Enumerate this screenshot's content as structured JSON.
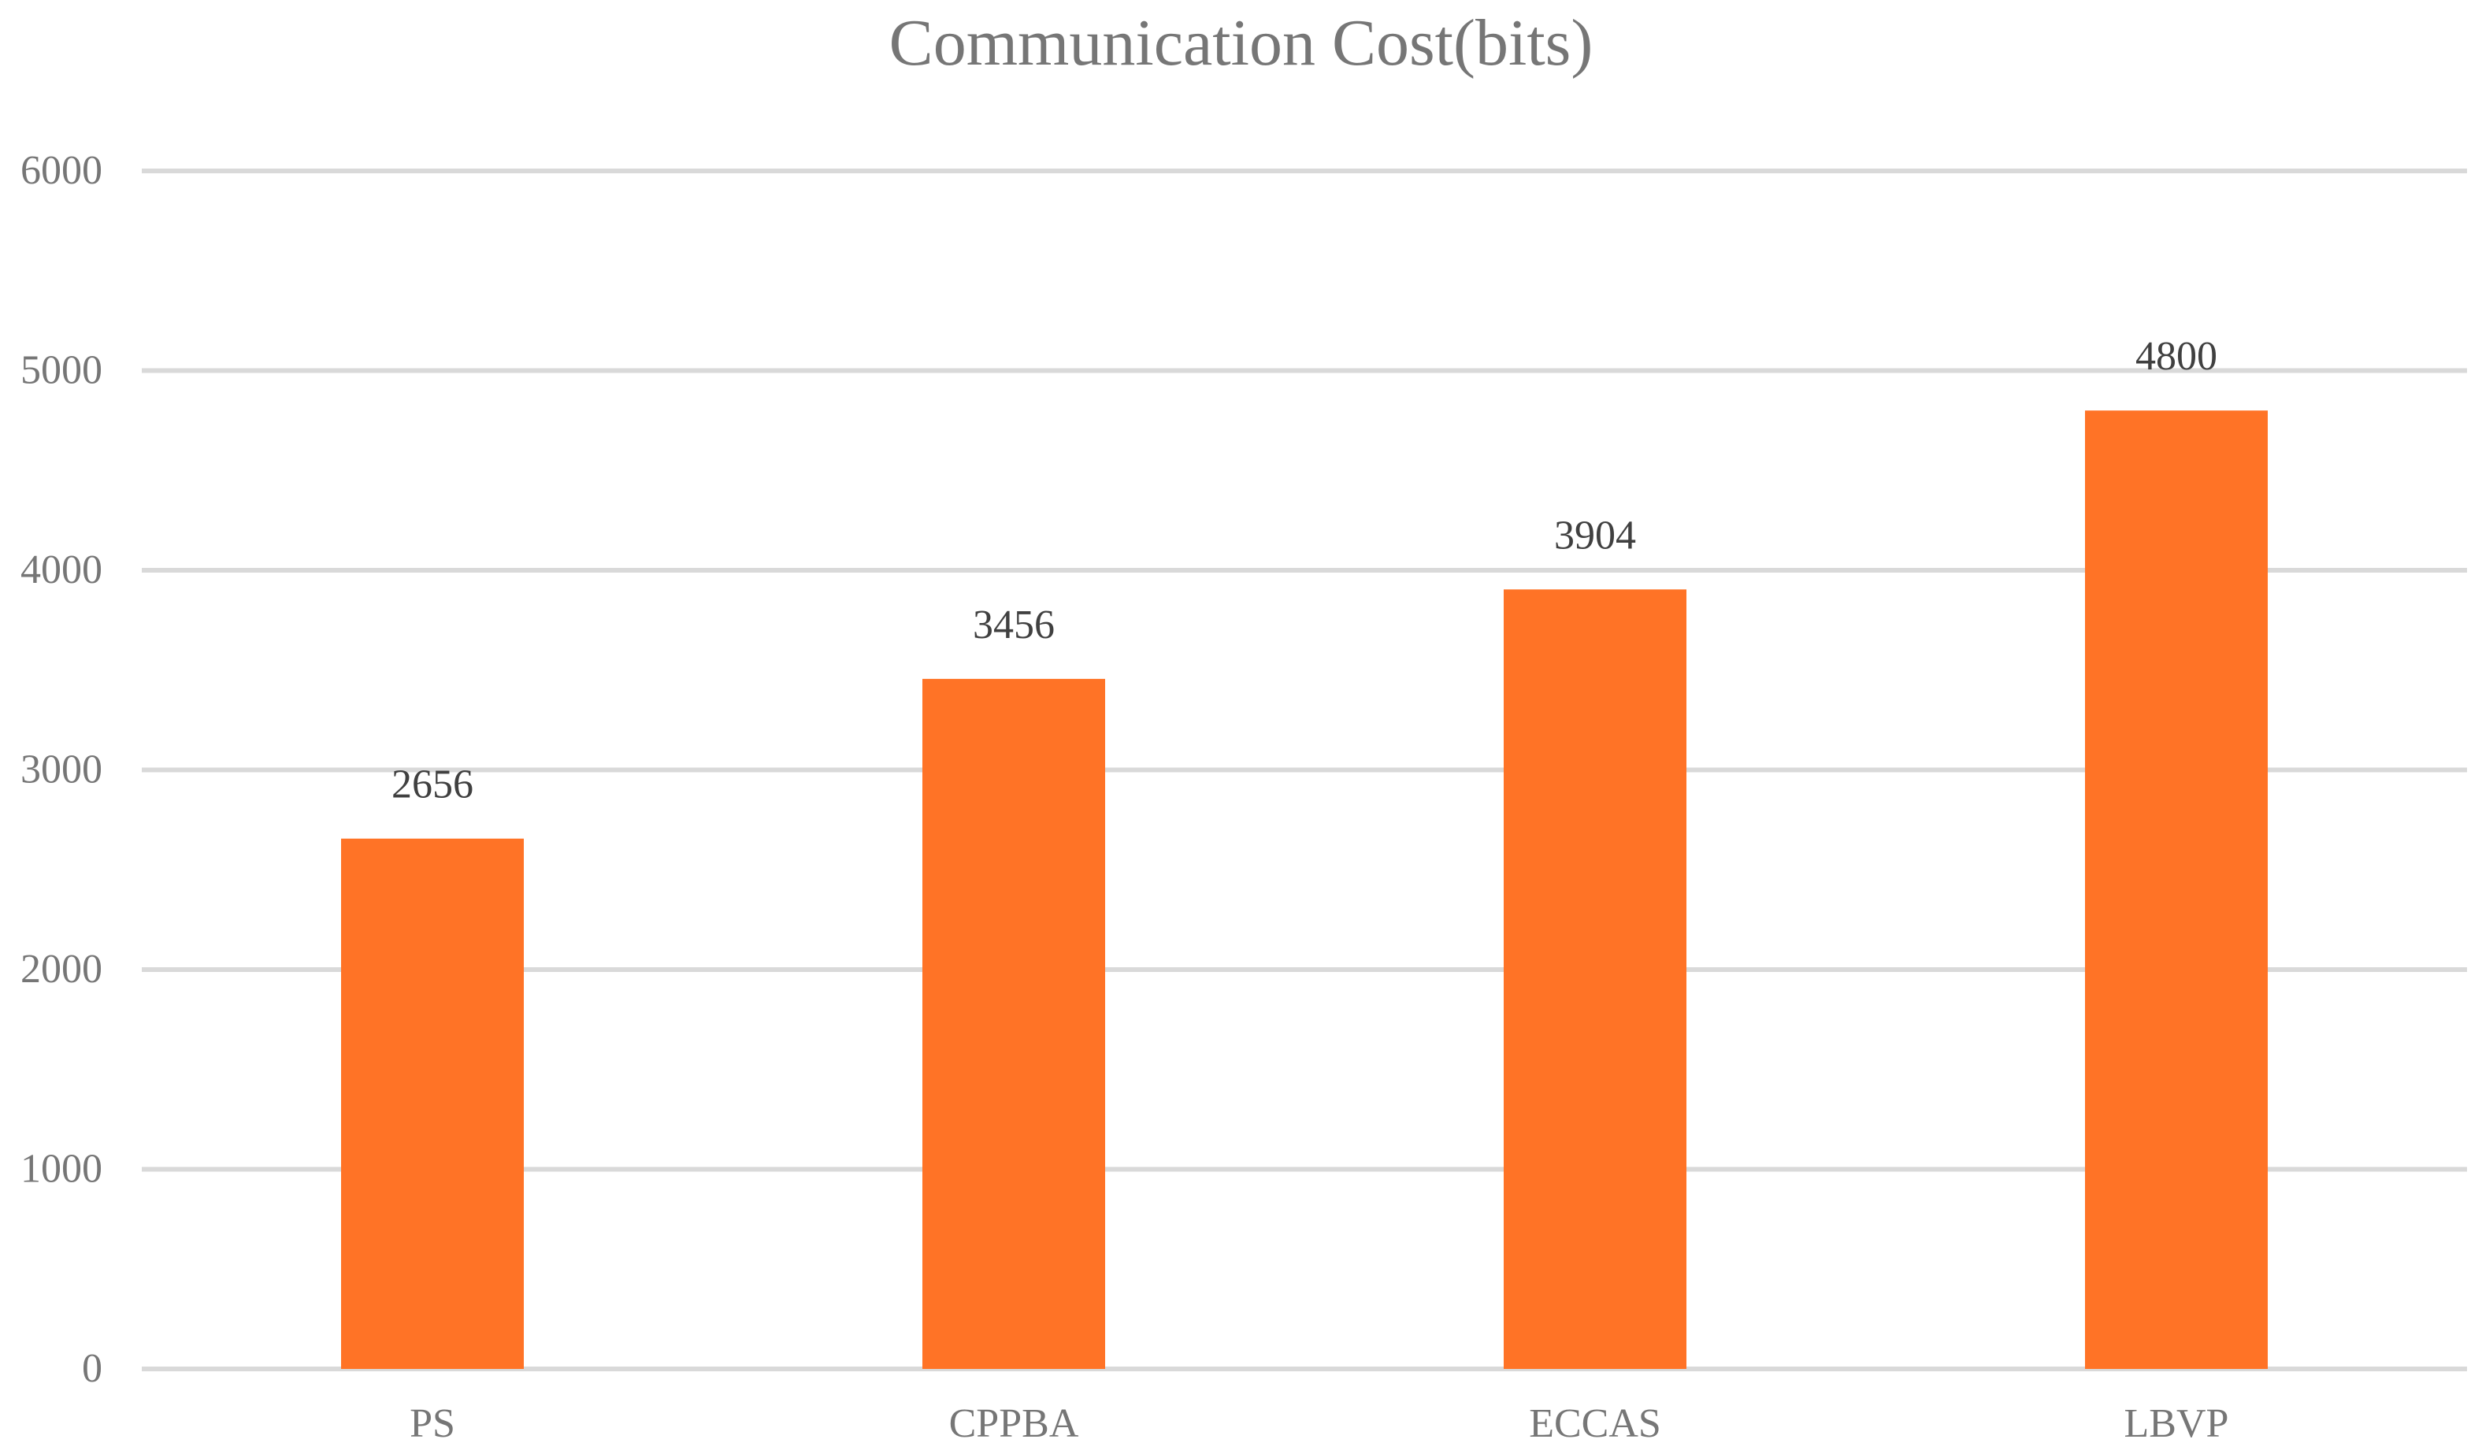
{
  "chart_data": {
    "type": "bar",
    "title": "Communication Cost(bits)",
    "xlabel": "",
    "ylabel": "",
    "categories": [
      "PS",
      "CPPBA",
      "ECCAS",
      "LBVP"
    ],
    "values": [
      2656,
      3456,
      3904,
      4800
    ],
    "data_labels": [
      "2656",
      "3456",
      "3904",
      "4800"
    ],
    "y_ticks": [
      0,
      1000,
      2000,
      3000,
      4000,
      5000,
      6000
    ],
    "y_tick_labels": [
      "0",
      "1000",
      "2000",
      "3000",
      "4000",
      "5000",
      "6000"
    ],
    "ylim": [
      0,
      6000
    ],
    "grid": true,
    "legend": "none",
    "colors": {
      "bar": "#FF7326",
      "grid": "#D9D9D9",
      "axis_text": "#767676",
      "data_label": "#404040",
      "title": "#767676"
    }
  }
}
